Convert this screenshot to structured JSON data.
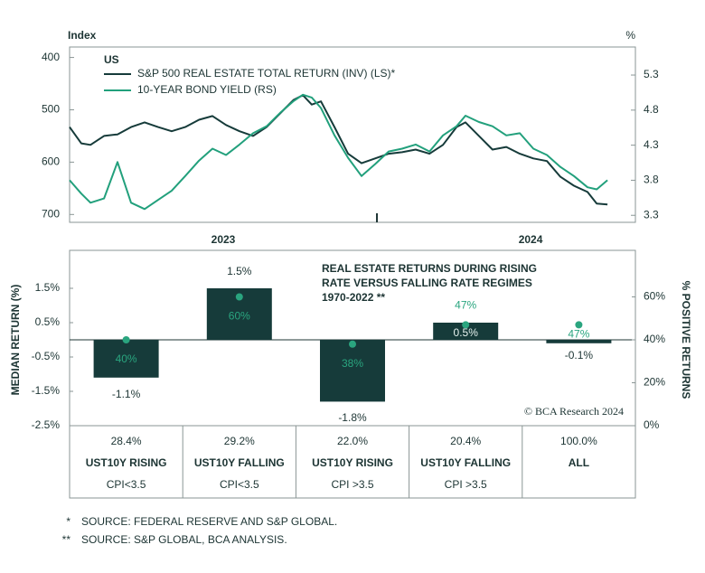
{
  "chart_data": [
    {
      "type": "line",
      "left_unit": "Index",
      "right_unit": "%",
      "region": "US",
      "x": [
        2023.0,
        2023.038,
        2023.068,
        2023.112,
        2023.156,
        2023.2,
        2023.244,
        2023.288,
        2023.332,
        2023.376,
        2023.421,
        2023.465,
        2023.509,
        2023.553,
        2023.597,
        2023.641,
        2023.685,
        2023.729,
        2023.759,
        2023.788,
        2023.818,
        2023.862,
        2023.906,
        2023.95,
        2023.994,
        2024.038,
        2024.082,
        2024.126,
        2024.171,
        2024.215,
        2024.259,
        2024.288,
        2024.332,
        2024.376,
        2024.421,
        2024.465,
        2024.509,
        2024.553,
        2024.597,
        2024.641,
        2024.685,
        2024.715,
        2024.75
      ],
      "series": [
        {
          "name": "S&P 500 REAL ESTATE TOTAL RETURN (INV) (LS)*",
          "color": "#163b3a",
          "values": [
            533,
            564,
            567,
            550,
            547,
            533,
            524,
            533,
            541,
            533,
            519,
            512,
            529,
            541,
            550,
            533,
            507,
            481,
            472,
            490,
            484,
            533,
            584,
            602,
            593,
            584,
            581,
            576,
            584,
            567,
            533,
            524,
            550,
            576,
            571,
            584,
            593,
            598,
            628,
            645,
            657,
            679,
            681
          ]
        },
        {
          "name": "10-YEAR BOND YIELD (RS)",
          "color": "#22a07c",
          "axis": "y2",
          "values": [
            3.8,
            3.61,
            3.48,
            3.54,
            4.06,
            3.48,
            3.39,
            3.52,
            3.65,
            3.86,
            4.08,
            4.25,
            4.16,
            4.31,
            4.47,
            4.57,
            4.76,
            4.93,
            5.02,
            4.98,
            4.83,
            4.44,
            4.12,
            3.86,
            4.03,
            4.21,
            4.25,
            4.31,
            4.21,
            4.44,
            4.57,
            4.72,
            4.63,
            4.57,
            4.44,
            4.47,
            4.25,
            4.16,
            3.99,
            3.86,
            3.7,
            3.67,
            3.8
          ]
        }
      ],
      "xlim": [
        2023,
        2024.841
      ],
      "xticks": [
        {
          "value": 2023.5,
          "label": "2023"
        },
        {
          "value": 2024.5,
          "label": "2024"
        }
      ],
      "xtick_marks": [
        2024
      ],
      "ylim": [
        715,
        380
      ],
      "yticks": [
        400,
        500,
        600,
        700
      ],
      "y2lim": [
        3.2,
        5.7
      ],
      "y2ticks": [
        3.3,
        3.8,
        4.3,
        4.8,
        5.3
      ]
    },
    {
      "type": "bar",
      "title_lines": [
        "REAL ESTATE RETURNS DURING RISING",
        "RATE VERSUS FALLING RATE REGIMES",
        "1970-2022 **"
      ],
      "credit": "© BCA Research 2024",
      "ylabel": "MEDIAN RETURN (%)",
      "y2label": "% POSITIVE RETURNS",
      "shares": [
        28.4,
        29.2,
        22.0,
        20.4,
        100.0
      ],
      "share_labels": [
        "28.4%",
        "29.2%",
        "22.0%",
        "20.4%",
        "100.0%"
      ],
      "categories": [
        "UST10Y RISING",
        "UST10Y FALLING",
        "UST10Y RISING",
        "UST10Y FALLING",
        "ALL"
      ],
      "conditions": [
        "CPI<3.5",
        "CPI<3.5",
        "CPI >3.5",
        "CPI >3.5",
        null
      ],
      "series": [
        {
          "color": "#163b3a",
          "values": [
            -1.1,
            1.5,
            -1.8,
            0.5,
            -0.1
          ],
          "value_labels": [
            "-1.1%",
            "1.5%",
            "-1.8%",
            "0.5%",
            "-0.1%"
          ]
        },
        {
          "color": "#2aa57f",
          "axis": "y2",
          "marker": "dot",
          "values": [
            40,
            60,
            38,
            47,
            47
          ],
          "value_labels": [
            "40%",
            "60%",
            "38%",
            "47%",
            "47%"
          ]
        }
      ],
      "ylim": [
        -2.5,
        2.5
      ],
      "yticks": [
        {
          "value": 1.5,
          "label": "1.5%"
        },
        {
          "value": 0.5,
          "label": "0.5%"
        },
        {
          "value": -0.5,
          "label": "-0.5%"
        },
        {
          "value": -1.5,
          "label": "-1.5%"
        },
        {
          "value": -2.5,
          "label": "-2.5%"
        }
      ],
      "y2lim": [
        0,
        80
      ],
      "y2ticks": [
        {
          "value": 0,
          "label": "0%"
        },
        {
          "value": 20,
          "label": "20%"
        },
        {
          "value": 40,
          "label": "40%"
        },
        {
          "value": 60,
          "label": "60%"
        }
      ]
    }
  ],
  "notes": [
    {
      "marker": "*",
      "text": "SOURCE: FEDERAL RESERVE AND S&P GLOBAL."
    },
    {
      "marker": "**",
      "text": "SOURCE: S&P GLOBAL, BCA ANALYSIS."
    }
  ]
}
